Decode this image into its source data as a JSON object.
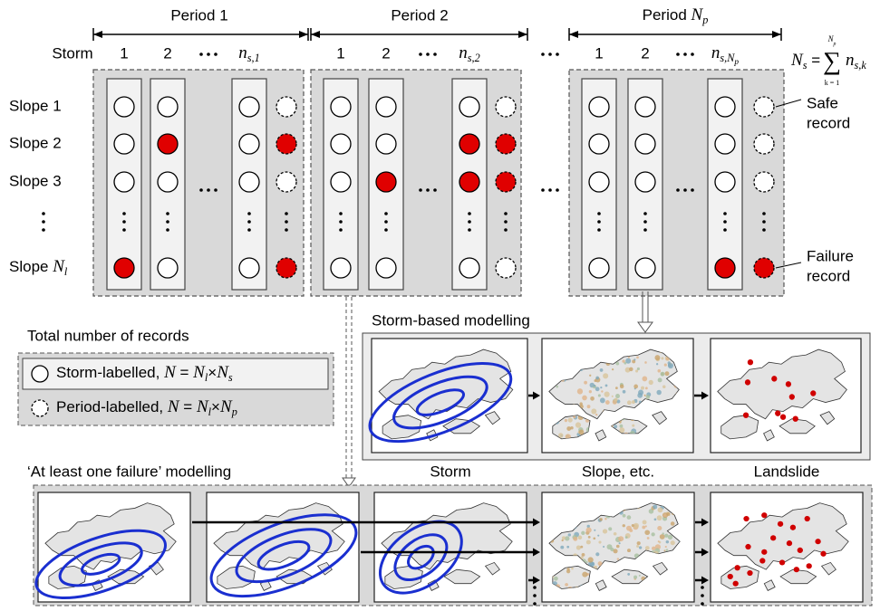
{
  "periods": [
    {
      "label": "Period 1",
      "storms": [
        "1",
        "2",
        [
          {
            "t": "n",
            "i": true,
            "sub": "s,1"
          }
        ]
      ]
    },
    {
      "label": "Period 2",
      "storms": [
        "1",
        "2",
        [
          {
            "t": "n",
            "i": true,
            "sub": "s,2"
          }
        ]
      ]
    },
    {
      "label": [
        {
          "t": "Period "
        },
        {
          "t": "N",
          "i": true,
          "sub": "p"
        }
      ],
      "storms": [
        "1",
        "2",
        [
          {
            "t": "n",
            "i": true
          },
          {
            "t": "s,",
            "i": true,
            "lvl": 1
          },
          {
            "t": "N",
            "i": true,
            "lvl": 1,
            "sub": "p"
          }
        ]
      ]
    }
  ],
  "storm_label": "Storm",
  "slopes": [
    "Slope 1",
    "Slope 2",
    "Slope 3",
    [
      {
        "t": "Slope "
      },
      {
        "t": "N",
        "i": true,
        "sub": "l"
      }
    ]
  ],
  "formula": {
    "lhs": [
      {
        "t": "N",
        "i": true,
        "sub": "s"
      },
      {
        "t": " ="
      }
    ],
    "sigma": "∑",
    "upper": [
      {
        "t": "N",
        "i": true,
        "sub": "p"
      }
    ],
    "lower": "k = 1",
    "rhs": [
      {
        "t": "n",
        "i": true,
        "sub": "s,k"
      }
    ]
  },
  "safe_record": [
    "Safe",
    "record"
  ],
  "failure_record": [
    "Failure",
    "record"
  ],
  "legend": {
    "title": "Total number of records",
    "items": [
      [
        {
          "t": "Storm-labelled, "
        },
        {
          "t": "N",
          "i": true
        },
        {
          "t": " = "
        },
        {
          "t": "N",
          "i": true,
          "sub": "l"
        },
        {
          "t": "×"
        },
        {
          "t": "N",
          "i": true,
          "sub": "s"
        }
      ],
      [
        {
          "t": "Period-labelled, "
        },
        {
          "t": "N",
          "i": true
        },
        {
          "t": " = "
        },
        {
          "t": "N",
          "i": true,
          "sub": "l"
        },
        {
          "t": "×"
        },
        {
          "t": "N",
          "i": true,
          "sub": "p"
        }
      ]
    ]
  },
  "storm_based": {
    "title": "Storm-based modelling"
  },
  "at_least_one": {
    "title": "‘At least one failure’ modelling"
  },
  "columns": [
    "Storm",
    "Slope, etc.",
    "Landslide"
  ]
}
